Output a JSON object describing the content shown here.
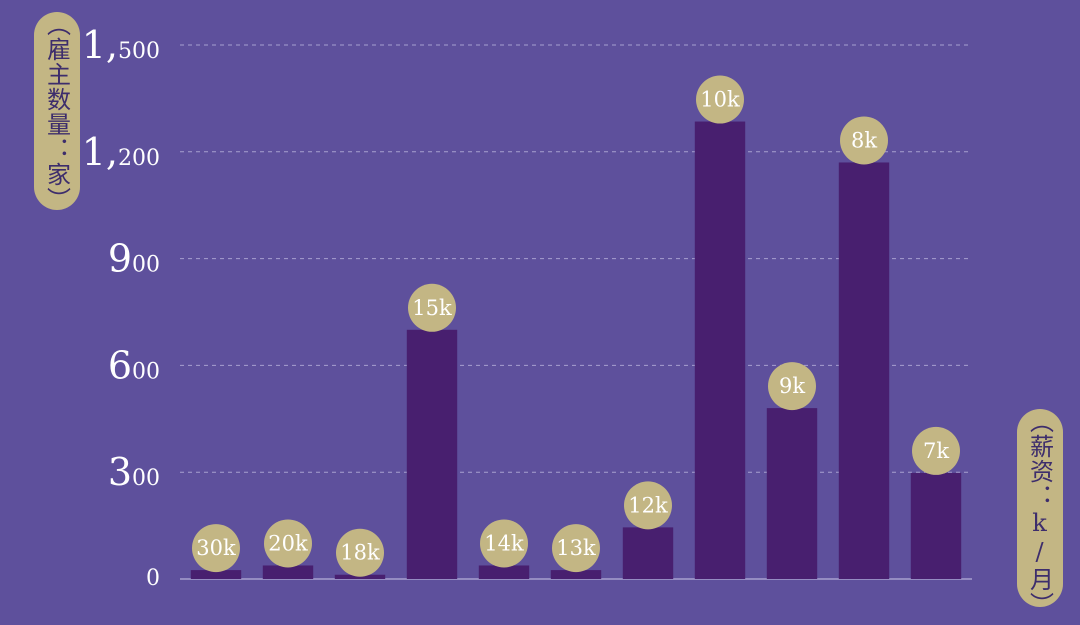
{
  "chart_data": {
    "type": "bar",
    "categories": [
      "30k",
      "20k",
      "18k",
      "15k",
      "14k",
      "13k",
      "12k",
      "10k",
      "9k",
      "8k",
      "7k"
    ],
    "values": [
      25,
      38,
      12,
      700,
      38,
      25,
      145,
      1285,
      480,
      1170,
      298
    ],
    "title": "",
    "ylabel": "（雇主数量：家）",
    "xlabel": "（薪资：k/月）",
    "ylim": [
      0,
      1500
    ],
    "yticks": [
      {
        "big": "0",
        "small": ""
      },
      {
        "big": "3",
        "small": "00"
      },
      {
        "big": "6",
        "small": "00"
      },
      {
        "big": "9",
        "small": "00"
      },
      {
        "big": "1,",
        "small": "200"
      },
      {
        "big": "1,",
        "small": "500"
      }
    ],
    "gridlines": true,
    "colors": {
      "background": "#5e509c",
      "bar": "#481f6f",
      "label_bubble": "#c3b684",
      "label_text": "#ffffff",
      "grid": "#a79fcf",
      "axis_text": "#ffffff"
    }
  }
}
